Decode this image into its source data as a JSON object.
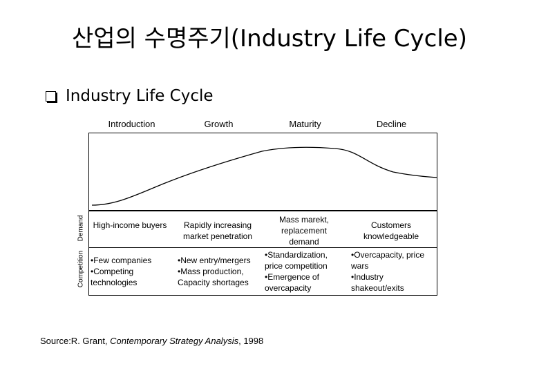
{
  "title": "산업의 수명주기(Industry Life Cycle)",
  "subtitle": "Industry Life Cycle",
  "stages": [
    "Introduction",
    "Growth",
    "Maturity",
    "Decline"
  ],
  "row_labels": {
    "demand": "Demand",
    "competition": "Competition"
  },
  "demand": [
    "High-income buyers",
    "Rapidly increasing market penetration",
    "Mass marekt, replacement demand",
    "Customers knowledgeable"
  ],
  "competition": [
    [
      "•Few companies",
      "•Competing",
      "technologies"
    ],
    [
      "•New entry/mergers",
      "•Mass production,",
      "Capacity shortages"
    ],
    [
      "•Standardization,",
      "price competition",
      "•Emergence of",
      "overcapacity"
    ],
    [
      "•Overcapacity, price",
      "wars",
      "•Industry",
      "shakeout/exits"
    ]
  ],
  "source": {
    "prefix": "Source:R. Grant, ",
    "book": "Contemporary Strategy Analysis",
    "suffix": ", 1998"
  }
}
